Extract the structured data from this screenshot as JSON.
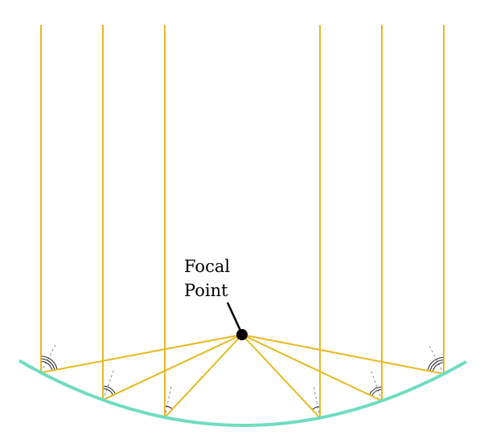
{
  "label": {
    "line1": "Focal",
    "line2": "Point"
  },
  "colors": {
    "mirror": "#6fdcc0",
    "ray": "#e6b820",
    "normal": "#888888",
    "angle_arc": "#222222",
    "focal_point": "#000000"
  },
  "rays": [
    {
      "id": "left-outer"
    },
    {
      "id": "left-middle"
    },
    {
      "id": "left-inner"
    },
    {
      "id": "right-inner"
    },
    {
      "id": "right-middle"
    },
    {
      "id": "right-outer"
    }
  ]
}
